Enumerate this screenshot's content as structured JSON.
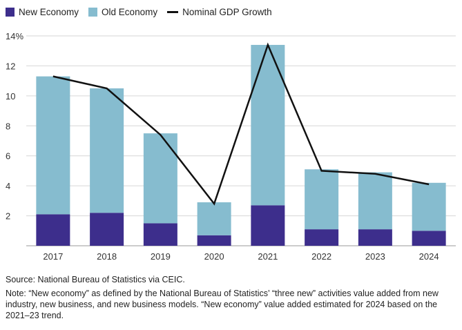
{
  "chart_data": {
    "type": "bar",
    "stacked": true,
    "categories": [
      "2017",
      "2018",
      "2019",
      "2020",
      "2021",
      "2022",
      "2023",
      "2024"
    ],
    "series": [
      {
        "name": "New Economy",
        "kind": "bar",
        "color": "#3d2e8c",
        "values": [
          2.1,
          2.2,
          1.5,
          0.7,
          2.7,
          1.1,
          1.1,
          1.0
        ]
      },
      {
        "name": "Old Economy",
        "kind": "bar",
        "color": "#86bccf",
        "values": [
          9.2,
          8.3,
          6.0,
          2.2,
          10.7,
          4.0,
          3.8,
          3.2
        ]
      },
      {
        "name": "Nominal GDP Growth",
        "kind": "line",
        "color": "#111111",
        "values": [
          11.3,
          10.5,
          7.4,
          2.8,
          13.4,
          5.0,
          4.8,
          4.1
        ]
      }
    ],
    "ylim": [
      0,
      14
    ],
    "yticks": [
      2,
      4,
      6,
      8,
      10,
      12,
      14
    ],
    "ytick_labels": [
      "2",
      "4",
      "6",
      "8",
      "10",
      "12",
      "14%"
    ],
    "legend_position": "top-left",
    "grid": true
  },
  "source_text": "Source: National Bureau of Statistics via CEIC.",
  "note_text": "Note: “New economy” as defined by the National Bureau of Statistics’ “three new” activities value added from new industry, new business, and new business models. “New economy” value added estimated for 2024 based on the 2021–23 trend."
}
